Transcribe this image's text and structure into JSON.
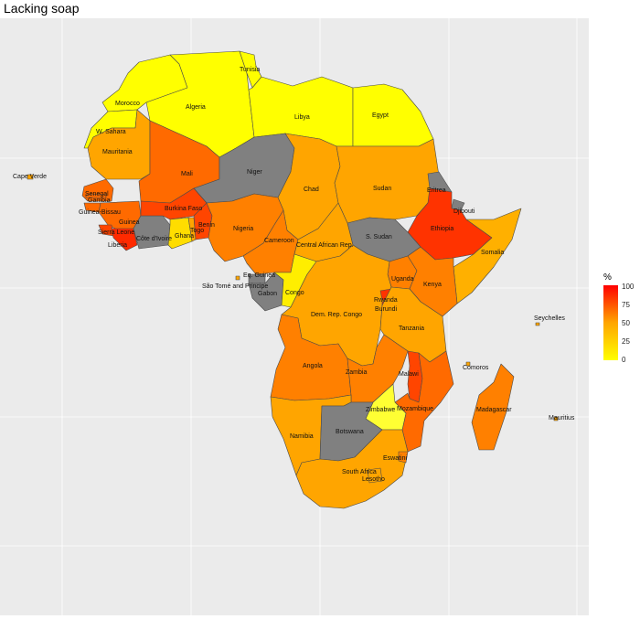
{
  "title": "Lacking soap",
  "legend": {
    "title": "%",
    "ticks": [
      "100",
      "75",
      "50",
      "25",
      "0"
    ],
    "range": [
      0,
      100
    ],
    "colors": {
      "low": "#ffff00",
      "high": "#ff0000",
      "na": "#808080"
    }
  },
  "map": {
    "background": "#ebebeb",
    "grid": true,
    "country_labels": [
      "Cape Verde",
      "Tunisia",
      "Morocco",
      "Algeria",
      "Libya",
      "Egypt",
      "W. Sahara",
      "Mauritania",
      "Mali",
      "Niger",
      "Chad",
      "Sudan",
      "Eritrea",
      "Djibouti",
      "Senegal",
      "Gambia",
      "Guinea-Bissau",
      "Guinea",
      "Sierra Leone",
      "Liberia",
      "Burkina Faso",
      "Côte d'Ivoire",
      "Ghana",
      "Togo",
      "Benin",
      "Nigeria",
      "Ethiopia",
      "Cameroon",
      "Central African Rep.",
      "S. Sudan",
      "Somalia",
      "Eq. Guinea",
      "São Tomé and Principe",
      "Gabon",
      "Congo",
      "Uganda",
      "Kenya",
      "Rwanda",
      "Burundi",
      "Dem. Rep. Congo",
      "Seychelles",
      "Tanzania",
      "Angola",
      "Comoros",
      "Zambia",
      "Malawi",
      "Madagascar",
      "Mauritius",
      "Zimbabwe",
      "Mozambique",
      "Namibia",
      "Botswana",
      "Eswatini",
      "South Africa",
      "Lesotho"
    ]
  }
}
